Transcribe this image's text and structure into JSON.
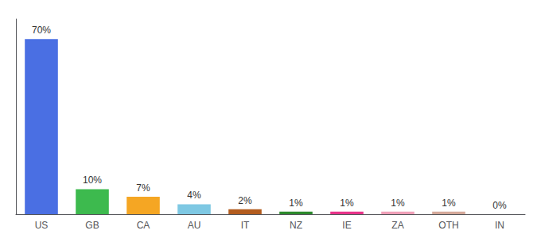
{
  "chart_data": {
    "type": "bar",
    "categories": [
      "US",
      "GB",
      "CA",
      "AU",
      "IT",
      "NZ",
      "IE",
      "ZA",
      "OTH",
      "IN"
    ],
    "values": [
      70,
      10,
      7,
      4,
      2,
      1,
      1,
      1,
      1,
      0
    ],
    "value_labels": [
      "70%",
      "10%",
      "7%",
      "4%",
      "2%",
      "1%",
      "1%",
      "1%",
      "1%",
      "0%"
    ],
    "colors": [
      "#4a6fe3",
      "#3dba4e",
      "#f5a623",
      "#7ec8e3",
      "#b35c1e",
      "#2d8a2d",
      "#e8348a",
      "#f0a0b8",
      "#d4a99a",
      "#cccccc"
    ],
    "ylim": [
      0,
      78
    ],
    "data_labels": true,
    "tick_labels": "x",
    "grid": false
  }
}
